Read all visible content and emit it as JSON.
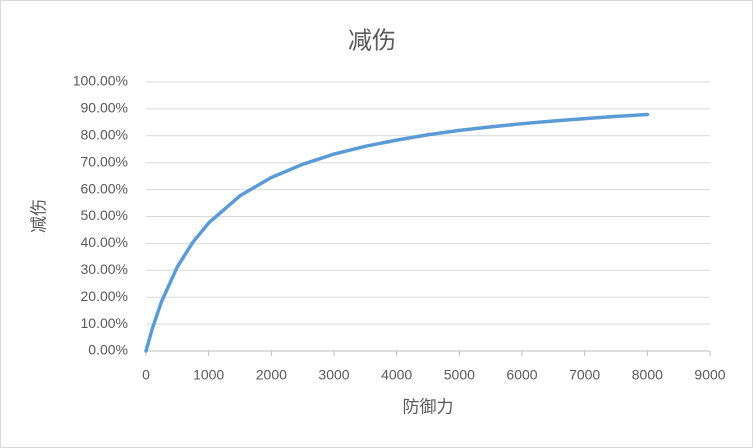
{
  "chart_data": {
    "type": "line",
    "title": "减伤",
    "x_label": "防御力",
    "y_label": "减伤",
    "x": [
      0,
      100,
      250,
      500,
      750,
      1000,
      1500,
      2000,
      2500,
      3000,
      3500,
      4000,
      4500,
      5000,
      5500,
      6000,
      6500,
      7000,
      7500,
      8000
    ],
    "series": [
      {
        "name": "减伤",
        "color": "#5b9bd5",
        "values": [
          0,
          8.3,
          18.5,
          31.3,
          40.5,
          47.6,
          57.7,
          64.5,
          69.4,
          73.2,
          76.1,
          78.4,
          80.4,
          82.0,
          83.3,
          84.5,
          85.5,
          86.4,
          87.2,
          87.9
        ]
      }
    ],
    "xlim": [
      0,
      9000
    ],
    "xticks": [
      0,
      1000,
      2000,
      3000,
      4000,
      5000,
      6000,
      7000,
      8000,
      9000
    ],
    "ylim": [
      0,
      100
    ],
    "yticks": [
      {
        "value": 0,
        "label": "0.00%"
      },
      {
        "value": 10,
        "label": "10.00%"
      },
      {
        "value": 20,
        "label": "20.00%"
      },
      {
        "value": 30,
        "label": "30.00%"
      },
      {
        "value": 40,
        "label": "40.00%"
      },
      {
        "value": 50,
        "label": "50.00%"
      },
      {
        "value": 60,
        "label": "60.00%"
      },
      {
        "value": 70,
        "label": "70.00%"
      },
      {
        "value": 80,
        "label": "80.00%"
      },
      {
        "value": 90,
        "label": "90.00%"
      },
      {
        "value": 100,
        "label": "100.00%"
      }
    ],
    "grid": true
  }
}
